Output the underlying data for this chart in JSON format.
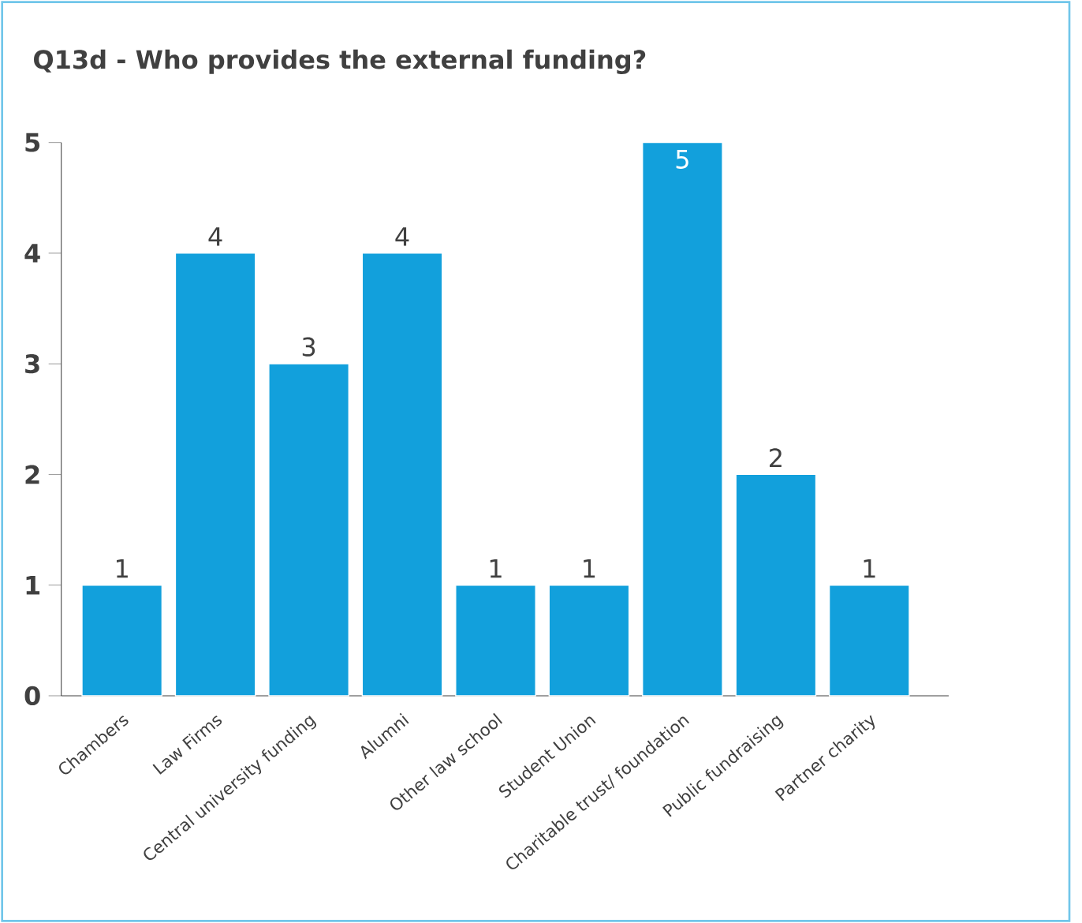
{
  "chart_data": {
    "type": "bar",
    "title": "Q13d - Who provides the external funding?",
    "categories": [
      "Chambers",
      "Law Firms",
      "Central university funding",
      "Alumni",
      "Other law school",
      "Student Union",
      "Charitable trust/ foundation",
      "Public fundraising",
      "Partner charity"
    ],
    "values": [
      1,
      4,
      3,
      4,
      1,
      1,
      5,
      2,
      1
    ],
    "color": "#12a0dc",
    "ylim": [
      0,
      5
    ],
    "yticks": [
      0,
      1,
      2,
      3,
      4,
      5
    ],
    "data_labels": true
  }
}
